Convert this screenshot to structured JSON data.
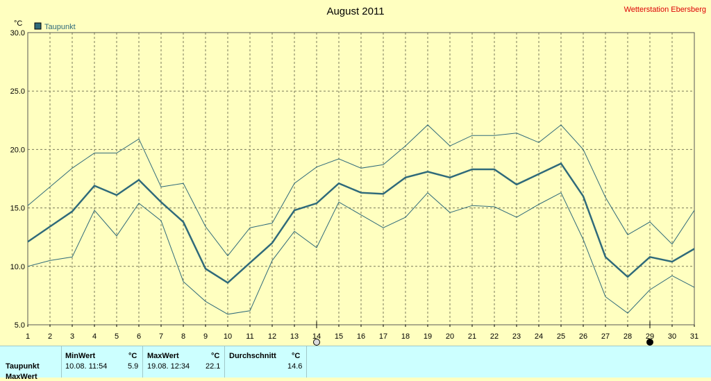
{
  "header": {
    "title": "August 2011",
    "station": "Wetterstation Ebersberg"
  },
  "chart_data": {
    "type": "line",
    "title": "August 2011",
    "ylabel": "°C",
    "ylim": [
      5.0,
      30.0
    ],
    "yticks": [
      "5.0",
      "10.0",
      "15.0",
      "20.0",
      "25.0",
      "30.0"
    ],
    "x": [
      1,
      2,
      3,
      4,
      5,
      6,
      7,
      8,
      9,
      10,
      11,
      12,
      13,
      14,
      15,
      16,
      17,
      18,
      19,
      20,
      21,
      22,
      23,
      24,
      25,
      26,
      27,
      28,
      29,
      30,
      31
    ],
    "grid": true,
    "legend": "top-left",
    "series": [
      {
        "name": "Taupunkt",
        "role": "mean",
        "color": "#2f6a7a",
        "values": [
          12.1,
          13.4,
          14.7,
          16.9,
          16.1,
          17.4,
          15.5,
          13.8,
          9.8,
          8.6,
          10.3,
          12.0,
          14.8,
          15.4,
          17.1,
          16.3,
          16.2,
          17.6,
          18.1,
          17.6,
          18.3,
          18.3,
          17.0,
          17.9,
          18.8,
          16.0,
          10.8,
          9.1,
          10.8,
          10.4,
          11.5
        ]
      },
      {
        "role": "max",
        "color": "#2f6a7a",
        "values": [
          15.2,
          16.8,
          18.4,
          19.7,
          19.7,
          20.9,
          16.8,
          17.1,
          13.4,
          10.9,
          13.3,
          13.7,
          17.1,
          18.5,
          19.2,
          18.4,
          18.7,
          20.3,
          22.1,
          20.3,
          21.2,
          21.2,
          21.4,
          20.6,
          22.1,
          20.0,
          15.9,
          12.7,
          13.8,
          11.9,
          14.8
        ]
      },
      {
        "role": "min",
        "color": "#2f6a7a",
        "values": [
          10.0,
          10.5,
          10.8,
          14.8,
          12.6,
          15.4,
          13.9,
          8.7,
          7.0,
          5.9,
          6.2,
          10.5,
          13.0,
          11.6,
          15.5,
          14.4,
          13.3,
          14.2,
          16.3,
          14.6,
          15.2,
          15.1,
          14.2,
          15.3,
          16.3,
          12.3,
          7.4,
          6.0,
          8.0,
          9.2,
          8.2
        ]
      }
    ],
    "moon_markers": [
      {
        "day": 14,
        "phase": "full"
      },
      {
        "day": 29,
        "phase": "new"
      }
    ]
  },
  "stats": {
    "row_label": "Taupunkt",
    "row2_label": "MaxWert",
    "min_header": "MinWert",
    "min_unit": "°C",
    "min_time": "10.08.  11:54",
    "min_value": "5.9",
    "max_header": "MaxWert",
    "max_unit": "°C",
    "max_time": "19.08.  12:34",
    "max_value": "22.1",
    "avg_header": "Durchschnitt",
    "avg_unit": "°C",
    "avg_value": "14.6"
  }
}
